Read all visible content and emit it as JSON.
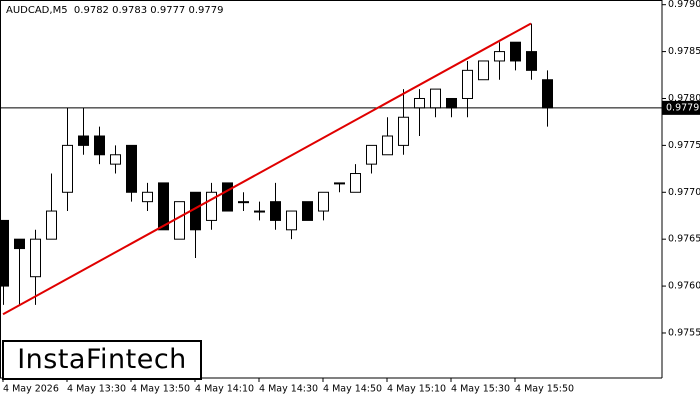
{
  "chart_data": {
    "type": "candlestick",
    "title": "AUDCAD,M5",
    "categories": [
      "4 May 2026",
      null,
      null,
      null,
      "4 May 13:30",
      null,
      null,
      null,
      "4 May 13:50",
      null,
      null,
      null,
      "4 May 14:10",
      null,
      null,
      null,
      "4 May 14:30",
      null,
      null,
      null,
      "4 May 14:50",
      null,
      null,
      null,
      "4 May 15:10",
      null,
      null,
      null,
      "4 May 15:30",
      null,
      null,
      null,
      "4 May 15:50",
      null,
      null
    ],
    "open": [
      0.9767,
      0.9765,
      0.9761,
      0.9765,
      0.977,
      0.9776,
      0.9776,
      0.9773,
      0.9775,
      0.9769,
      0.9771,
      0.9765,
      0.977,
      0.9767,
      0.9771,
      0.9769,
      0.9768,
      0.9769,
      0.9766,
      0.9769,
      0.9768,
      0.9771,
      0.977,
      0.9773,
      0.9774,
      0.9775,
      0.9779,
      0.9779,
      0.978,
      0.978,
      0.9782,
      0.9784,
      0.9786,
      0.9785,
      0.9782
    ],
    "high": [
      0.9767,
      0.9765,
      0.9766,
      0.9772,
      0.9779,
      0.9779,
      0.9777,
      0.9775,
      0.9775,
      0.9771,
      0.9771,
      0.9769,
      0.977,
      0.9771,
      0.9771,
      0.977,
      0.9769,
      0.9771,
      0.9768,
      0.9769,
      0.977,
      0.9771,
      0.9773,
      0.9775,
      0.9778,
      0.9781,
      0.9781,
      0.9781,
      0.978,
      0.9784,
      0.9784,
      0.9786,
      0.9786,
      0.9788,
      0.9783
    ],
    "low": [
      0.9758,
      0.9758,
      0.9758,
      0.9765,
      0.9768,
      0.9774,
      0.9773,
      0.9772,
      0.9769,
      0.9768,
      0.9766,
      0.9765,
      0.9763,
      0.9766,
      0.9768,
      0.9768,
      0.9767,
      0.9766,
      0.9765,
      0.9767,
      0.9767,
      0.977,
      0.977,
      0.9772,
      0.9774,
      0.9774,
      0.9776,
      0.9778,
      0.9778,
      0.9778,
      0.9782,
      0.9782,
      0.9783,
      0.9782,
      0.9777
    ],
    "close": [
      0.976,
      0.9764,
      0.9765,
      0.9768,
      0.9775,
      0.9775,
      0.9774,
      0.9774,
      0.977,
      0.977,
      0.9766,
      0.9769,
      0.9766,
      0.977,
      0.9768,
      0.9769,
      0.9768,
      0.9767,
      0.9768,
      0.9767,
      0.977,
      0.9771,
      0.9772,
      0.9775,
      0.9776,
      0.9778,
      0.978,
      0.9781,
      0.9779,
      0.9783,
      0.9784,
      0.9785,
      0.9784,
      0.9783,
      0.9779
    ],
    "up_color": "#ffffff",
    "down_color": "#000000",
    "ylim": [
      0.97502,
      0.97905
    ],
    "yticks": [
      0.9755,
      {
        "value": 0.976,
        "label": "0.9760"
      },
      0.9765,
      {
        "value": 0.977,
        "label": "0.9770"
      },
      0.9775,
      {
        "value": 0.978,
        "label": "0.9780"
      },
      0.9785,
      {
        "value": 0.979,
        "label": "0.9790"
      }
    ],
    "trend_line": {
      "x": [
        0,
        33
      ],
      "values": [
        0.9757,
        0.9788
      ],
      "color": "#e00000"
    },
    "logo": "InstaFintech"
  }
}
